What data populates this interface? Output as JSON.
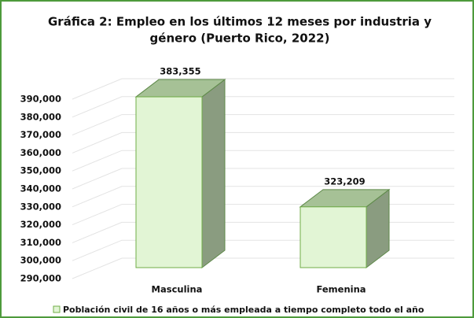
{
  "chart_data": {
    "type": "bar3d",
    "title": "Gráfica 2: Empleo en los últimos 12 meses por industria y",
    "subtitle": "género (Puerto Rico, 2022)",
    "categories": [
      "Masculina",
      "Femenina"
    ],
    "series": [
      {
        "name": "Población civil de 16 años o más empleada a tiempo completo todo el año",
        "color": "#e2f5d5",
        "values": [
          383355,
          323209
        ],
        "value_labels": [
          "383,355",
          "323,209"
        ]
      }
    ],
    "ylim": [
      290000,
      390000
    ],
    "yticks": [
      {
        "value": 290000,
        "label": "290,000"
      },
      {
        "value": 300000,
        "label": "300,000"
      },
      {
        "value": 310000,
        "label": "310,000"
      },
      {
        "value": 320000,
        "label": "320,000"
      },
      {
        "value": 330000,
        "label": "330,000"
      },
      {
        "value": 340000,
        "label": "340,000"
      },
      {
        "value": 350000,
        "label": "350,000"
      },
      {
        "value": 360000,
        "label": "360,000"
      },
      {
        "value": 370000,
        "label": "370,000"
      },
      {
        "value": 380000,
        "label": "380,000"
      },
      {
        "value": 390000,
        "label": "390,000"
      }
    ],
    "grid": true,
    "legend": "bottom"
  }
}
